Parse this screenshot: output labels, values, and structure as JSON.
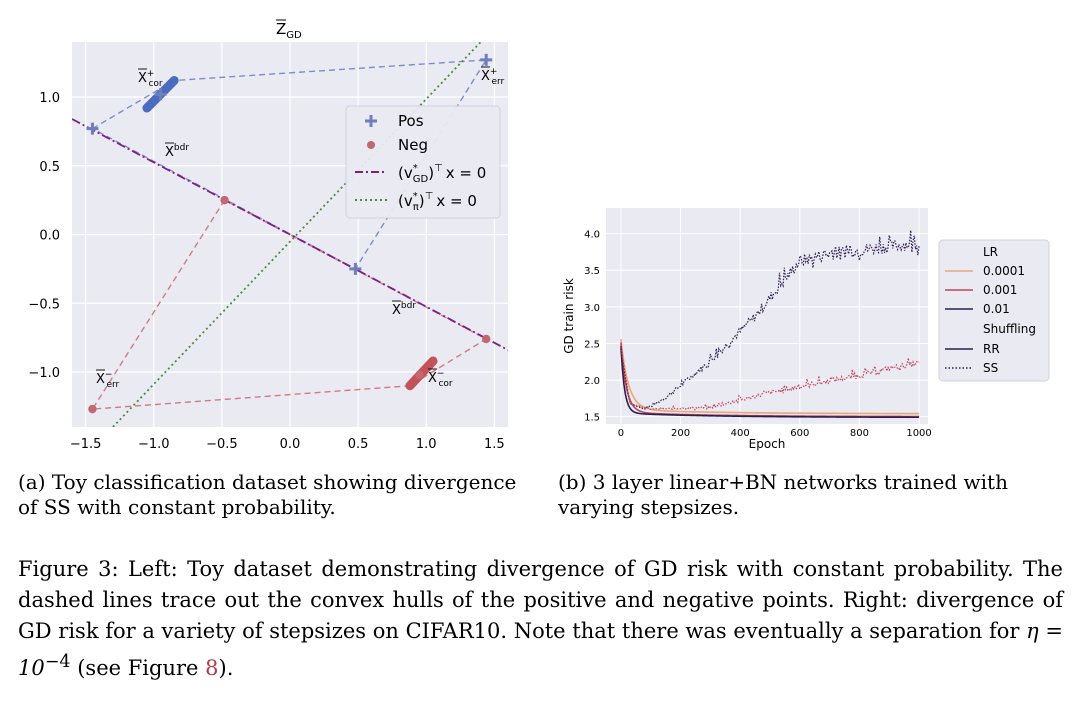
{
  "chart_data": [
    {
      "type": "scatter",
      "title": "Z̄_GD",
      "title_main": "Z",
      "title_sub": "GD",
      "xlim": [
        -1.6,
        1.6
      ],
      "ylim": [
        -1.4,
        1.4
      ],
      "xticks": [
        -1.5,
        -1.0,
        -0.5,
        0.0,
        0.5,
        1.0,
        1.5
      ],
      "yticks": [
        -1.0,
        -0.5,
        0.0,
        0.5,
        1.0
      ],
      "xtick_labels": [
        "−1.5",
        "−1.0",
        "−0.5",
        "0.0",
        "0.5",
        "1.0",
        "1.5"
      ],
      "ytick_labels": [
        "−1.0",
        "−0.5",
        "0.0",
        "0.5",
        "1.0"
      ],
      "grid": true,
      "legend_position": "upper-right",
      "series": [
        {
          "name": "Pos",
          "marker": "plus",
          "color": "#6d80bd",
          "points": [
            [
              -1.45,
              0.77
            ],
            [
              -0.95,
              1.02
            ],
            [
              0.48,
              -0.25
            ],
            [
              1.44,
              1.27
            ]
          ]
        },
        {
          "name": "Neg",
          "marker": "circle",
          "color": "#c26870",
          "points": [
            [
              -0.48,
              0.25
            ],
            [
              -1.45,
              -1.27
            ],
            [
              0.95,
              -1.02
            ],
            [
              1.44,
              -0.76
            ]
          ]
        }
      ],
      "clusters": [
        {
          "label": "pos",
          "from": [
            -1.05,
            0.92
          ],
          "to": [
            -0.85,
            1.12
          ],
          "color": "#4a6bc0"
        },
        {
          "label": "neg",
          "from": [
            0.88,
            -1.1
          ],
          "to": [
            1.05,
            -0.92
          ],
          "color": "#c4525a"
        }
      ],
      "hulls": [
        {
          "color": "#7f8ccb",
          "points": [
            [
              -1.45,
              0.77
            ],
            [
              -0.85,
              1.12
            ],
            [
              1.44,
              1.27
            ],
            [
              0.48,
              -0.25
            ],
            [
              -1.45,
              0.77
            ]
          ]
        },
        {
          "color": "#d47a82",
          "points": [
            [
              -0.48,
              0.25
            ],
            [
              -1.45,
              -1.27
            ],
            [
              0.88,
              -1.1
            ],
            [
              1.44,
              -0.76
            ],
            [
              -0.48,
              0.25
            ]
          ]
        }
      ],
      "lines": [
        {
          "name": "vGD",
          "style": "dashdot",
          "color": "#7b1f86",
          "p1": [
            -1.6,
            0.84
          ],
          "p2": [
            1.6,
            -0.84
          ]
        },
        {
          "name": "vpi",
          "style": "dotted",
          "color": "#4f8a3b",
          "p1": [
            -1.3,
            -1.4
          ],
          "p2": [
            1.4,
            1.4
          ]
        }
      ],
      "legend": {
        "pos": "Pos",
        "neg": "Neg",
        "vgd_main": "(v",
        "vgd_sup": "*",
        "vgd_sub": "GD",
        "vgd_rest": ")",
        "vgd_T": "⊤",
        "vgd_eq": "x = 0",
        "vpi_main": "(v",
        "vpi_sup": "*",
        "vpi_sub": "π",
        "vpi_rest": ")",
        "vpi_T": "⊤",
        "vpi_eq": "x = 0"
      },
      "annotations": {
        "xcor_pos": {
          "main": "X",
          "sup": "+",
          "sub": "cor"
        },
        "xerr_pos": {
          "main": "X",
          "sup": "+",
          "sub": "err"
        },
        "xbdr_1": {
          "main": "X",
          "sup": "bdr"
        },
        "xbdr_2": {
          "main": "X",
          "sup": "bdr"
        },
        "xerr_neg": {
          "main": "X",
          "sup": "−",
          "sub": "err"
        },
        "xcor_neg": {
          "main": "X",
          "sup": "−",
          "sub": "cor"
        }
      }
    },
    {
      "type": "line",
      "xlabel": "Epoch",
      "ylabel": "GD train risk",
      "xlim": [
        -50,
        1030
      ],
      "ylim": [
        1.4,
        4.35
      ],
      "xticks": [
        0,
        200,
        400,
        600,
        800,
        1000
      ],
      "yticks": [
        1.5,
        2.0,
        2.5,
        3.0,
        3.5,
        4.0
      ],
      "xtick_labels": [
        "0",
        "200",
        "400",
        "600",
        "800",
        "1000"
      ],
      "ytick_labels": [
        "1.5",
        "2.0",
        "2.5",
        "3.0",
        "3.5",
        "4.0"
      ],
      "grid": true,
      "legend_position": "right",
      "legend": {
        "lr_title": "LR",
        "lr_items": [
          "0.0001",
          "0.001",
          "0.01"
        ],
        "shuffle_title": "Shuffling",
        "shuffle_items": [
          "RR",
          "SS"
        ]
      },
      "series": [
        {
          "name": "0.0001 RR",
          "color": "#e8a878",
          "dash": "solid",
          "kind": "decay",
          "y0": 2.5,
          "yend": 1.54,
          "tau": 25
        },
        {
          "name": "0.001 RR",
          "color": "#c0465a",
          "dash": "solid",
          "kind": "decay",
          "y0": 2.45,
          "yend": 1.5,
          "tau": 18
        },
        {
          "name": "0.01 RR",
          "color": "#2d1e4e",
          "dash": "solid",
          "kind": "decay",
          "y0": 2.4,
          "yend": 1.49,
          "tau": 12
        },
        {
          "name": "0.01 SS",
          "color": "#2d1e4e",
          "dash": "dotted",
          "kind": "diverge",
          "knots": [
            [
              0,
              2.4
            ],
            [
              30,
              1.68
            ],
            [
              80,
              1.6
            ],
            [
              150,
              1.75
            ],
            [
              300,
              2.25
            ],
            [
              450,
              2.85
            ],
            [
              600,
              3.6
            ],
            [
              700,
              3.7
            ],
            [
              800,
              3.75
            ],
            [
              900,
              3.8
            ],
            [
              1000,
              3.85
            ]
          ],
          "noise": 0.17
        },
        {
          "name": "0.001 SS",
          "color": "#c0465a",
          "dash": "dotted",
          "kind": "diverge",
          "knots": [
            [
              0,
              2.45
            ],
            [
              30,
              1.68
            ],
            [
              100,
              1.6
            ],
            [
              300,
              1.62
            ],
            [
              400,
              1.72
            ],
            [
              500,
              1.82
            ],
            [
              600,
              1.9
            ],
            [
              700,
              1.98
            ],
            [
              800,
              2.05
            ],
            [
              900,
              2.15
            ],
            [
              1000,
              2.22
            ]
          ],
          "noise": 0.07
        }
      ]
    }
  ],
  "captions": {
    "a": "(a) Toy classification dataset showing divergence of SS with constant probability.",
    "b": "(b) 3 layer linear+BN networks trained with varying stepsizes.",
    "figure_part1": "Figure 3: Left: Toy dataset demonstrating divergence of GD risk with constant probability. The dashed lines trace out the convex hulls of the positive and negative points. Right: divergence of GD risk for a variety of stepsizes on CIFAR10. Note that there was eventually a separation for ",
    "eta": "η = 10",
    "exp": "−4",
    "figure_part2": " (see Figure ",
    "fig_ref": "8",
    "figure_part3": ")."
  }
}
